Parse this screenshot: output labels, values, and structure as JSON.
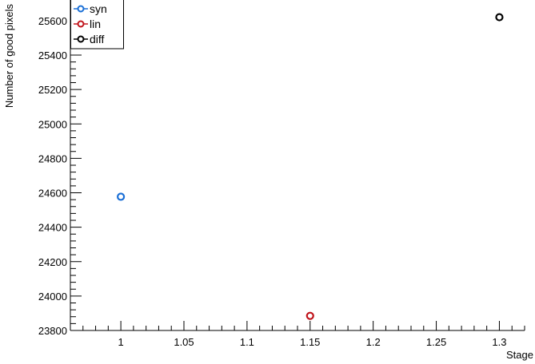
{
  "chart_data": {
    "type": "scatter",
    "title": "",
    "xlabel": "Stage",
    "ylabel": "Number of good pixels",
    "xlim": [
      0.96,
      1.32
    ],
    "ylim": [
      23800,
      25720
    ],
    "x_ticks": [
      "1",
      "1.05",
      "1.1",
      "1.15",
      "1.2",
      "1.25",
      "1.3"
    ],
    "y_ticks": [
      "23800",
      "24000",
      "24200",
      "24400",
      "24600",
      "24800",
      "25000",
      "25200",
      "25400",
      "25600"
    ],
    "legend_position": "top-left",
    "grid": false,
    "series": [
      {
        "name": "syn",
        "color": "#1a6fd6",
        "marker": "open-circle",
        "points": [
          {
            "x": 1.0,
            "y": 24577
          }
        ]
      },
      {
        "name": "lin",
        "color": "#c0141b",
        "marker": "open-circle",
        "points": [
          {
            "x": 1.15,
            "y": 23885
          }
        ]
      },
      {
        "name": "diff",
        "color": "#000000",
        "marker": "open-circle",
        "points": [
          {
            "x": 1.3,
            "y": 25620
          }
        ]
      }
    ]
  }
}
